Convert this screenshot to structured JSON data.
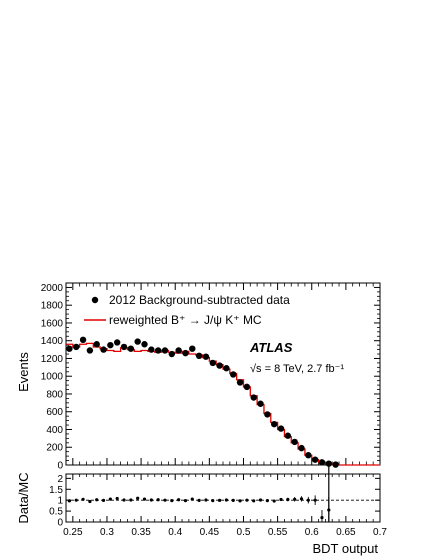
{
  "chart_data": [
    {
      "type": "scatter",
      "ylabel": "Events",
      "xlim": [
        0.24,
        0.7
      ],
      "ylim": [
        0,
        2050
      ],
      "y_ticks": [
        "0",
        "200",
        "400",
        "600",
        "800",
        "1000",
        "1200",
        "1400",
        "1600",
        "1800",
        "2000"
      ],
      "legend_placement": "top-left",
      "series": [
        {
          "name": "2012 Background-subtracted data",
          "style": "markers",
          "color": "#000000",
          "x": [
            0.245,
            0.255,
            0.265,
            0.275,
            0.285,
            0.295,
            0.305,
            0.315,
            0.325,
            0.335,
            0.345,
            0.355,
            0.365,
            0.375,
            0.385,
            0.395,
            0.405,
            0.415,
            0.425,
            0.435,
            0.445,
            0.455,
            0.465,
            0.475,
            0.485,
            0.495,
            0.505,
            0.515,
            0.525,
            0.535,
            0.545,
            0.555,
            0.565,
            0.575,
            0.585,
            0.595,
            0.605,
            0.615,
            0.625,
            0.635
          ],
          "y": [
            1310,
            1330,
            1410,
            1290,
            1360,
            1300,
            1350,
            1380,
            1330,
            1310,
            1390,
            1360,
            1300,
            1290,
            1290,
            1250,
            1290,
            1260,
            1310,
            1230,
            1220,
            1150,
            1120,
            1090,
            1020,
            930,
            880,
            760,
            690,
            570,
            460,
            410,
            330,
            260,
            190,
            110,
            60,
            30,
            15,
            5
          ]
        },
        {
          "name": "reweighted B⁺ → J/ψ K⁺ MC",
          "style": "step",
          "color": "#e00000",
          "x": [
            0.245,
            0.255,
            0.265,
            0.275,
            0.285,
            0.295,
            0.305,
            0.315,
            0.325,
            0.335,
            0.345,
            0.355,
            0.365,
            0.375,
            0.385,
            0.395,
            0.405,
            0.415,
            0.425,
            0.435,
            0.445,
            0.455,
            0.465,
            0.475,
            0.485,
            0.495,
            0.505,
            0.515,
            0.525,
            0.535,
            0.545,
            0.555,
            0.565,
            0.575,
            0.585,
            0.595,
            0.605,
            0.615,
            0.625,
            0.635
          ],
          "y": [
            1360,
            1330,
            1360,
            1370,
            1330,
            1310,
            1290,
            1280,
            1320,
            1300,
            1280,
            1290,
            1280,
            1270,
            1290,
            1270,
            1260,
            1280,
            1250,
            1240,
            1210,
            1170,
            1130,
            1080,
            1030,
            960,
            880,
            780,
            680,
            580,
            480,
            400,
            320,
            250,
            180,
            110,
            60,
            30,
            15,
            5
          ]
        }
      ],
      "annotations": [
        "ATLAS",
        "√s = 8 TeV, 2.7 fb⁻¹"
      ]
    },
    {
      "type": "scatter",
      "ylabel": "Data/MC",
      "xlabel": "BDT output",
      "xlim": [
        0.24,
        0.7
      ],
      "ylim": [
        0,
        2.2
      ],
      "x_ticks": [
        "0.25",
        "0.3",
        "0.35",
        "0.4",
        "0.45",
        "0.5",
        "0.55",
        "0.6",
        "0.65",
        "0.7"
      ],
      "y_ticks": [
        "0",
        "0.5",
        "1",
        "1.5",
        "2"
      ],
      "reference_line": 1,
      "series": [
        {
          "style": "markers",
          "x": [
            0.245,
            0.255,
            0.265,
            0.275,
            0.285,
            0.295,
            0.305,
            0.315,
            0.325,
            0.335,
            0.345,
            0.355,
            0.365,
            0.375,
            0.385,
            0.395,
            0.405,
            0.415,
            0.425,
            0.435,
            0.445,
            0.455,
            0.465,
            0.475,
            0.485,
            0.495,
            0.505,
            0.515,
            0.525,
            0.535,
            0.545,
            0.555,
            0.565,
            0.575,
            0.585,
            0.595,
            0.605,
            0.615,
            0.625
          ],
          "y": [
            0.97,
            1.0,
            1.04,
            0.94,
            1.02,
            0.99,
            1.05,
            1.08,
            1.01,
            1.01,
            1.09,
            1.05,
            1.01,
            1.02,
            1.0,
            0.98,
            1.02,
            0.98,
            1.05,
            0.99,
            1.01,
            0.98,
            0.99,
            1.01,
            0.99,
            0.97,
            1.0,
            0.97,
            1.01,
            0.98,
            0.96,
            1.03,
            1.03,
            1.04,
            1.06,
            1.0,
            1.0,
            0.2,
            0.55
          ],
          "err": [
            0.04,
            0.04,
            0.04,
            0.04,
            0.04,
            0.04,
            0.04,
            0.04,
            0.04,
            0.04,
            0.04,
            0.04,
            0.04,
            0.04,
            0.04,
            0.04,
            0.04,
            0.04,
            0.04,
            0.04,
            0.04,
            0.04,
            0.04,
            0.04,
            0.04,
            0.04,
            0.05,
            0.05,
            0.05,
            0.06,
            0.06,
            0.07,
            0.08,
            0.1,
            0.12,
            0.15,
            0.22,
            0.35,
            0.6
          ]
        }
      ]
    }
  ]
}
